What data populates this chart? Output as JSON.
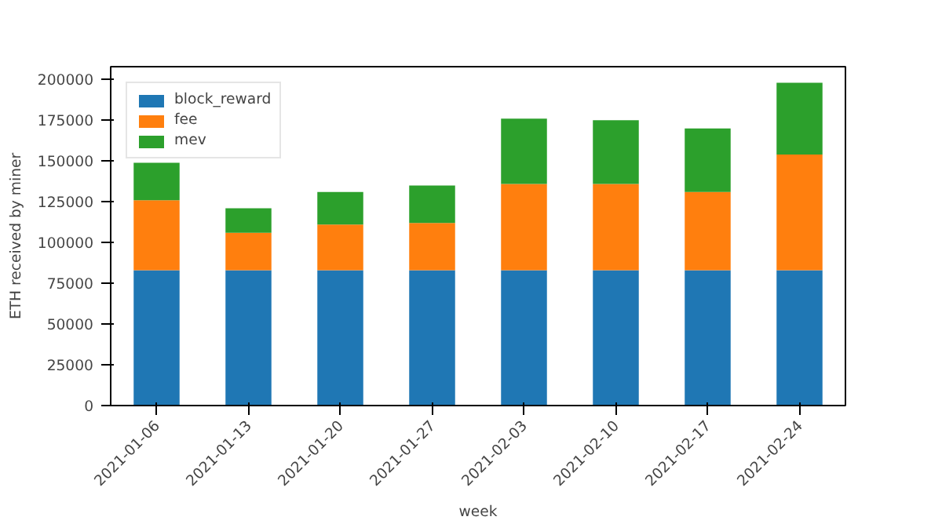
{
  "chart_data": {
    "type": "bar",
    "stacked": true,
    "xlabel": "week",
    "ylabel": "ETH received by miner",
    "categories": [
      "2021-01-06",
      "2021-01-13",
      "2021-01-20",
      "2021-01-27",
      "2021-02-03",
      "2021-02-10",
      "2021-02-17",
      "2021-02-24"
    ],
    "series": [
      {
        "name": "block_reward",
        "color": "#1f77b4",
        "values": [
          83000,
          83000,
          83000,
          83000,
          83000,
          83000,
          83000,
          83000
        ]
      },
      {
        "name": "fee",
        "color": "#ff7f0e",
        "values": [
          43000,
          23000,
          28000,
          29000,
          53000,
          53000,
          48000,
          71000
        ]
      },
      {
        "name": "mev",
        "color": "#2ca02c",
        "values": [
          23000,
          15000,
          20000,
          23000,
          40000,
          39000,
          39000,
          44000
        ]
      }
    ],
    "ylim": [
      0,
      207900
    ],
    "yticks": [
      0,
      25000,
      50000,
      75000,
      100000,
      125000,
      150000,
      175000,
      200000
    ],
    "grid": false,
    "legend": "top left"
  }
}
